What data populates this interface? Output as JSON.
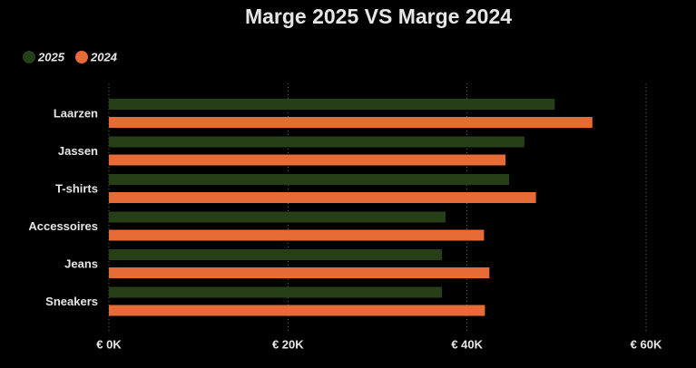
{
  "chart_data": {
    "type": "hbar",
    "title": "Marge 2025 VS Marge 2024",
    "categories": [
      "Laarzen",
      "Jassen",
      "T-shirts",
      "Accessoires",
      "Jeans",
      "Sneakers"
    ],
    "series": [
      {
        "name": "2025",
        "color": "#263f17",
        "values": [
          49800,
          46400,
          44700,
          37600,
          37200,
          37200
        ]
      },
      {
        "name": "2024",
        "color": "#e66b37",
        "values": [
          54000,
          44300,
          47700,
          41900,
          42500,
          42000
        ]
      }
    ],
    "xlim": [
      0,
      60000
    ],
    "xticks": [
      {
        "value": 0,
        "label": "€ 0K"
      },
      {
        "value": 20000,
        "label": "€ 20K"
      },
      {
        "value": 40000,
        "label": "€ 40K"
      },
      {
        "value": 60000,
        "label": "€ 60K"
      }
    ],
    "grid": true,
    "legend": "top-left"
  }
}
